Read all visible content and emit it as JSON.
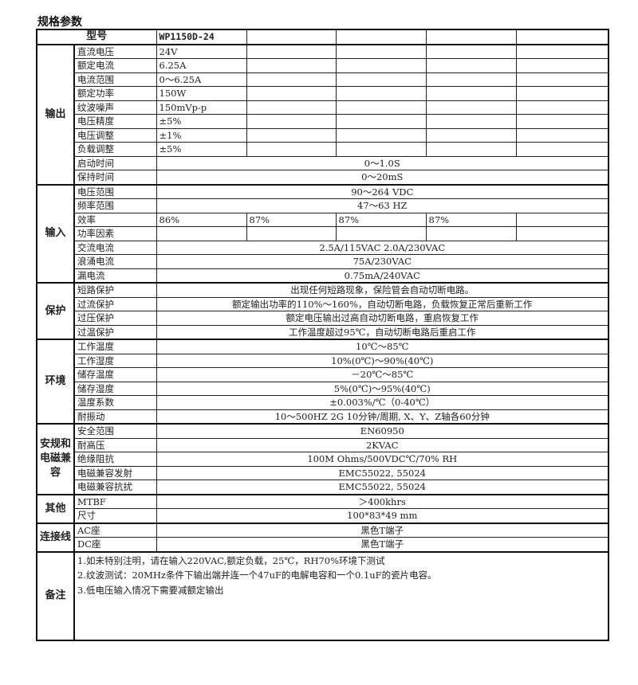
{
  "title": "规格参数",
  "header": {
    "label": "型号",
    "model": "WP1150D-24"
  },
  "sections": [
    {
      "category": "输出",
      "rows": [
        {
          "label": "直流电压",
          "values": [
            "24V",
            "",
            "",
            "",
            ""
          ]
        },
        {
          "label": "额定电流",
          "values": [
            "6.25A",
            "",
            "",
            "",
            ""
          ]
        },
        {
          "label": "电流范围",
          "values": [
            "0～6.25A",
            "",
            "",
            "",
            ""
          ]
        },
        {
          "label": "额定功率",
          "values": [
            "150W",
            "",
            "",
            "",
            ""
          ]
        },
        {
          "label": "纹波噪声",
          "values": [
            "150mVp-p",
            "",
            "",
            "",
            ""
          ]
        },
        {
          "label": "电压精度",
          "values": [
            "±5%",
            "",
            "",
            "",
            ""
          ]
        },
        {
          "label": "电压调整",
          "values": [
            "±1%",
            "",
            "",
            "",
            ""
          ]
        },
        {
          "label": "负载调整",
          "values": [
            "±5%",
            "",
            "",
            "",
            ""
          ]
        },
        {
          "label": "启动时间",
          "value": "0～1.0S"
        },
        {
          "label": "保持时间",
          "value": "0～20mS"
        }
      ]
    },
    {
      "category": "输入",
      "rows": [
        {
          "label": "电压范围",
          "value": "90～264 VDC"
        },
        {
          "label": "频率范围",
          "value": "47～63 HZ"
        },
        {
          "label": "效率",
          "values": [
            "86%",
            "87%",
            "87%",
            "87%",
            ""
          ]
        },
        {
          "label": "功率因素",
          "values": [
            "",
            "",
            "",
            "",
            ""
          ]
        },
        {
          "label": "交流电流",
          "value": "2.5A/115VAC  2.0A/230VAC"
        },
        {
          "label": "浪涌电流",
          "value": "75A/230VAC"
        },
        {
          "label": "漏电流",
          "value": "0.75mA/240VAC"
        }
      ]
    },
    {
      "category": "保护",
      "rows": [
        {
          "label": "短路保护",
          "value": "出现任何短路现象，保险管会自动切断电路。"
        },
        {
          "label": "过流保护",
          "value": "额定输出功率的110%～160%，自动切断电路，负载恢复正常后重新工作"
        },
        {
          "label": "过压保护",
          "value": "额定电压输出过高自动切断电路，重启恢复工作"
        },
        {
          "label": "过温保护",
          "value": "工作温度超过95℃，自动切断电路后重启工作"
        }
      ]
    },
    {
      "category": "环境",
      "rows": [
        {
          "label": "工作温度",
          "value": "10℃～85℃"
        },
        {
          "label": "工作湿度",
          "value": "10%(0℃)～90%(40℃)"
        },
        {
          "label": "储存温度",
          "value": "－20℃～85℃"
        },
        {
          "label": "储存湿度",
          "value": "5%(0℃)～95%(40℃)"
        },
        {
          "label": "温度系数",
          "value": "±0.003%/℃（0-40℃）"
        },
        {
          "label": "耐振动",
          "value": "10～500HZ 2G 10分钟/周期, X、Y、Z轴各60分钟"
        }
      ]
    },
    {
      "category": "安规和电磁兼容",
      "rows": [
        {
          "label": "安全范围",
          "value": "EN60950"
        },
        {
          "label": "耐高压",
          "value": "2KVAC"
        },
        {
          "label": "绝缘阻抗",
          "value": "100M Ohms/500VDC℃/70% RH"
        },
        {
          "label": "电磁兼容发射",
          "value": "EMC55022, 55024"
        },
        {
          "label": "电磁兼容抗扰",
          "value": "EMC55022, 55024"
        }
      ]
    },
    {
      "category": "其他",
      "rows": [
        {
          "label": "MTBF",
          "value": "＞400khrs"
        },
        {
          "label": "尺寸",
          "value": "100*83*49 mm"
        }
      ]
    },
    {
      "category": "连接线",
      "rows": [
        {
          "label": "AC座",
          "value": "黑色T端子"
        },
        {
          "label": "DC座",
          "value": "黑色T端子"
        }
      ]
    }
  ],
  "remarks": {
    "category": "备注",
    "notes": [
      "1.如未特别注明，请在输入220VAC,额定负载，25℃，RH70%环境下测试",
      "2.纹波测试：20MHz条件下输出端并连一个47uF的电解电容和一个0.1uF的瓷片电容。",
      "3.低电压输入情况下需要减额定输出"
    ]
  }
}
